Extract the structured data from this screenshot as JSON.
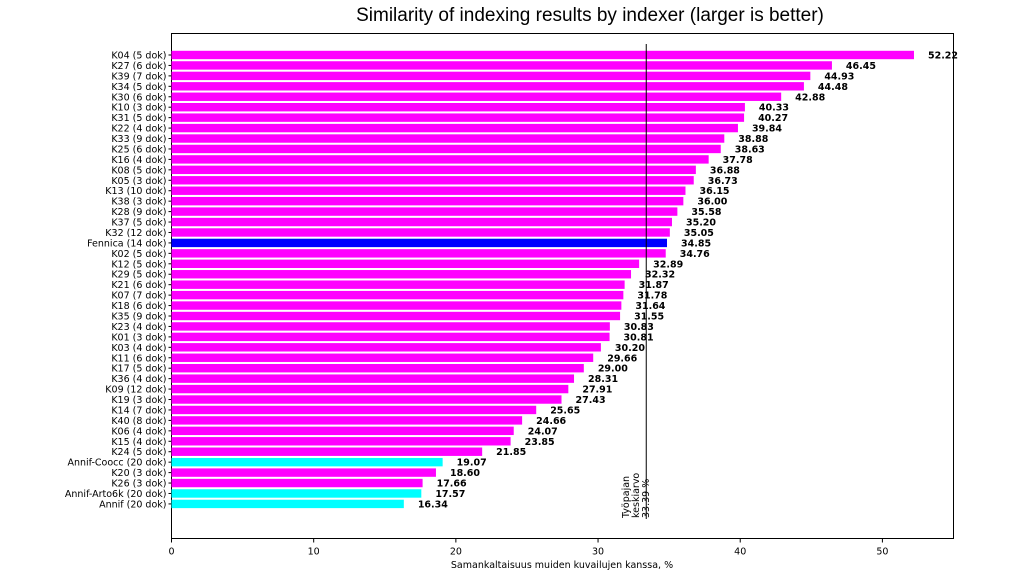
{
  "chart_data": {
    "type": "bar",
    "orientation": "horizontal",
    "title": "Similarity of indexing results by indexer (larger is better)",
    "xlabel": "Samankaltaisuus muiden kuvailujen kanssa, %",
    "ylabel": "",
    "xlim": [
      0,
      55
    ],
    "xticks": [
      0,
      10,
      20,
      30,
      40,
      50
    ],
    "grid": false,
    "categories": [
      "K04 (5 dok)",
      "K27 (6 dok)",
      "K39 (7 dok)",
      "K34 (5 dok)",
      "K30 (6 dok)",
      "K10 (3 dok)",
      "K31 (5 dok)",
      "K22 (4 dok)",
      "K33 (9 dok)",
      "K25 (6 dok)",
      "K16 (4 dok)",
      "K08 (5 dok)",
      "K05 (3 dok)",
      "K13 (10 dok)",
      "K38 (3 dok)",
      "K28 (9 dok)",
      "K37 (5 dok)",
      "K32 (12 dok)",
      "Fennica (14 dok)",
      "K02 (5 dok)",
      "K12 (5 dok)",
      "K29 (5 dok)",
      "K21 (6 dok)",
      "K07 (7 dok)",
      "K18 (6 dok)",
      "K35 (9 dok)",
      "K23 (4 dok)",
      "K01 (3 dok)",
      "K03 (4 dok)",
      "K11 (6 dok)",
      "K17 (5 dok)",
      "K36 (4 dok)",
      "K09 (12 dok)",
      "K19 (3 dok)",
      "K14 (7 dok)",
      "K40 (8 dok)",
      "K06 (4 dok)",
      "K15 (4 dok)",
      "K24 (5 dok)",
      "Annif-Coocc (20 dok)",
      "K20 (3 dok)",
      "K26 (3 dok)",
      "Annif-Arto6k (20 dok)",
      "Annif (20 dok)"
    ],
    "values": [
      52.22,
      46.45,
      44.93,
      44.48,
      42.88,
      40.33,
      40.27,
      39.84,
      38.88,
      38.63,
      37.78,
      36.88,
      36.73,
      36.15,
      36.0,
      35.58,
      35.2,
      35.05,
      34.85,
      34.76,
      32.89,
      32.32,
      31.87,
      31.78,
      31.64,
      31.55,
      30.83,
      30.81,
      30.2,
      29.66,
      29.0,
      28.31,
      27.91,
      27.43,
      25.65,
      24.66,
      24.07,
      23.85,
      21.85,
      19.07,
      18.6,
      17.66,
      17.57,
      16.34
    ],
    "value_labels": [
      "52.22",
      "46.45",
      "44.93",
      "44.48",
      "42.88",
      "40.33",
      "40.27",
      "39.84",
      "38.88",
      "38.63",
      "37.78",
      "36.88",
      "36.73",
      "36.15",
      "36.00",
      "35.58",
      "35.20",
      "35.05",
      "34.85",
      "34.76",
      "32.89",
      "32.32",
      "31.87",
      "31.78",
      "31.64",
      "31.55",
      "30.83",
      "30.81",
      "30.20",
      "29.66",
      "29.00",
      "28.31",
      "27.91",
      "27.43",
      "25.65",
      "24.66",
      "24.07",
      "23.85",
      "21.85",
      "19.07",
      "18.60",
      "17.66",
      "17.57",
      "16.34"
    ],
    "colors": {
      "default": "#ff00ff",
      "Fennica (14 dok)": "#0000ff",
      "Annif-Coocc (20 dok)": "#00ffff",
      "Annif-Arto6k (20 dok)": "#00ffff",
      "Annif (20 dok)": "#00ffff"
    },
    "reference_line": {
      "value": 33.39,
      "label_lines": [
        "Työpajan",
        "keskiarvo",
        "33.39 %"
      ]
    }
  }
}
